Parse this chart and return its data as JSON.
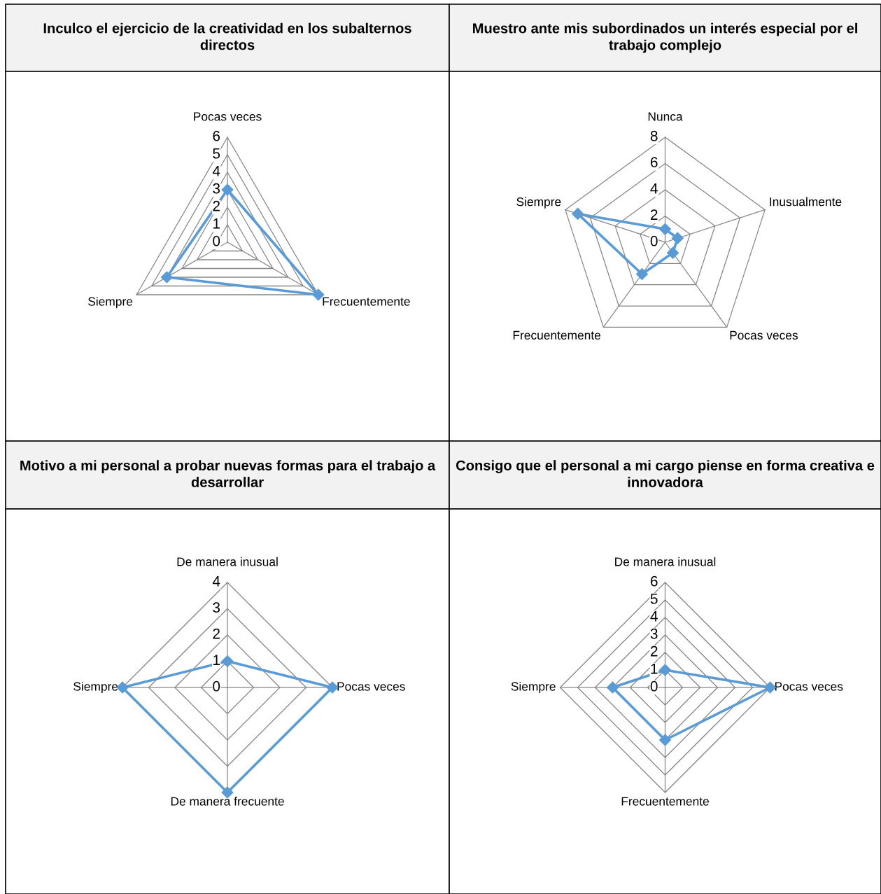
{
  "chart_data": [
    {
      "type": "radar",
      "title": "Inculco el ejercicio de la creatividad en los subalternos directos",
      "categories": [
        "Pocas veces",
        "Frecuentemente",
        "Siempre"
      ],
      "series": [
        {
          "color": "#5b9bd5",
          "values": [
            3,
            6,
            4
          ]
        }
      ],
      "ylim": [
        0,
        6
      ],
      "yticks": [
        0,
        1,
        2,
        3,
        4,
        5,
        6
      ],
      "marker": "diamond",
      "grid": true
    },
    {
      "type": "radar",
      "title": "Muestro ante mis subordinados un interés especial por el trabajo complejo",
      "categories": [
        "Nunca",
        "Inusualmente",
        "Pocas veces",
        "Frecuentemente",
        "Siempre"
      ],
      "series": [
        {
          "color": "#5b9bd5",
          "values": [
            1,
            1,
            1,
            3,
            7
          ]
        }
      ],
      "ylim": [
        0,
        8
      ],
      "yticks": [
        0,
        2,
        4,
        6,
        8
      ],
      "marker": "diamond",
      "grid": true
    },
    {
      "type": "radar",
      "title": "Motivo a mi personal a probar nuevas formas para el trabajo a desarrollar",
      "categories": [
        "De manera inusual",
        "Pocas veces",
        "De manera frecuente",
        "Siempre"
      ],
      "series": [
        {
          "color": "#5b9bd5",
          "values": [
            1,
            4,
            4,
            4
          ]
        }
      ],
      "ylim": [
        0,
        4
      ],
      "yticks": [
        0,
        1,
        2,
        3,
        4
      ],
      "marker": "diamond",
      "grid": true
    },
    {
      "type": "radar",
      "title": "Consigo que el personal a mi cargo piense en forma creativa e innovadora",
      "categories": [
        "De manera inusual",
        "Pocas veces",
        "Frecuentemente",
        "Siempre"
      ],
      "series": [
        {
          "color": "#5b9bd5",
          "values": [
            1,
            6,
            3,
            3
          ]
        }
      ],
      "ylim": [
        0,
        6
      ],
      "yticks": [
        0,
        1,
        2,
        3,
        4,
        5,
        6
      ],
      "marker": "diamond",
      "grid": true
    }
  ]
}
